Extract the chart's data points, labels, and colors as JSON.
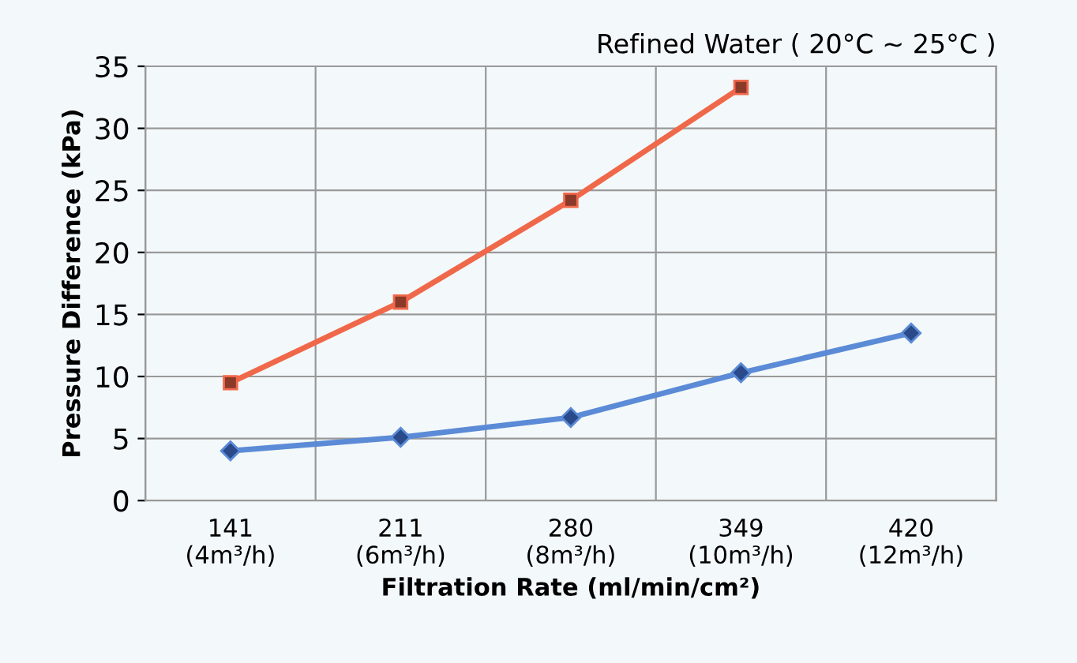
{
  "chart_data": {
    "type": "line",
    "title": "Refined Water ( 20°C ~ 25°C )",
    "xlabel": "Filtration Rate (ml/min/cm²)",
    "ylabel": "Pressure Difference (kPa)",
    "categories": [
      "141\n(4m³/h)",
      "211\n(6m³/h)",
      "280\n(8m³/h)",
      "349\n(10m³/h)",
      "420\n(12m³/h)"
    ],
    "series": [
      {
        "color": "#5b8bd6",
        "marker": "diamond",
        "values": [
          4.0,
          5.1,
          6.7,
          10.3,
          13.5
        ]
      },
      {
        "color": "#f0684a",
        "marker": "square",
        "values": [
          9.5,
          16.0,
          24.2,
          33.3,
          null
        ]
      }
    ],
    "ylim": [
      0,
      35
    ],
    "yticks": [
      0,
      5,
      10,
      15,
      20,
      25,
      30,
      35
    ],
    "grid": true,
    "legend": false
  }
}
